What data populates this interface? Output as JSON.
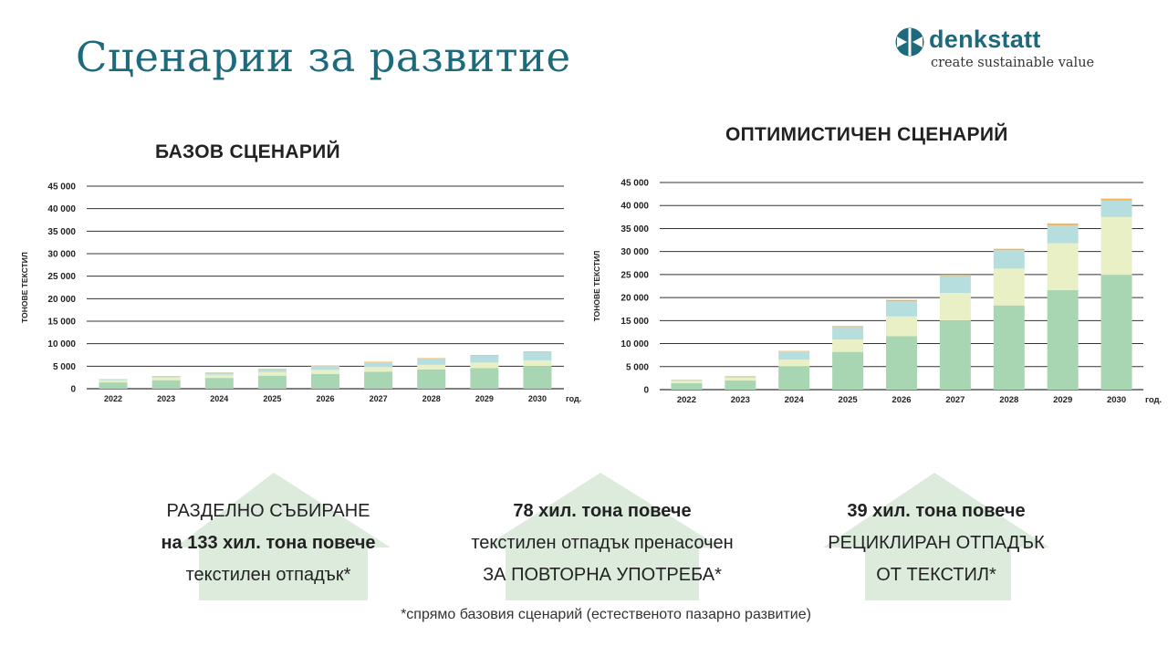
{
  "slide": {
    "title": "Сценарии за развитие",
    "footnote": "*спрямо базовия сценарий (естественото пазарно развитие)"
  },
  "logo": {
    "name": "denkstatt",
    "tagline": "create sustainable value",
    "icon": "denkstatt-logo-icon",
    "color": "#1e6a7d"
  },
  "colors": {
    "title": "#1e6a7d",
    "arrow_fill": "#dcebdc",
    "series": [
      "#a8d5b2",
      "#eaf0c6",
      "#b6dede",
      "#f2b457"
    ]
  },
  "chart_data": [
    {
      "type": "bar",
      "stacked": true,
      "title": "БАЗОВ СЦЕНАРИЙ",
      "ylabel": "ТОНОВЕ ТЕКСТИЛ",
      "xunit": "год.",
      "ylim": [
        0,
        45000
      ],
      "yticks": [
        "0",
        "5 000",
        "10 000",
        "15 000",
        "20 000",
        "25 000",
        "30 000",
        "35 000",
        "40 000",
        "45 000"
      ],
      "grid": true,
      "categories": [
        "2022",
        "2023",
        "2024",
        "2025",
        "2026",
        "2027",
        "2028",
        "2029",
        "2030"
      ],
      "series": [
        {
          "values": [
            1400,
            1900,
            2400,
            2900,
            3300,
            3800,
            4300,
            4600,
            5000
          ]
        },
        {
          "values": [
            500,
            600,
            700,
            800,
            900,
            1000,
            1000,
            1200,
            1300
          ]
        },
        {
          "values": [
            200,
            300,
            500,
            700,
            900,
            1100,
            1400,
            1600,
            1900
          ]
        },
        {
          "values": [
            50,
            50,
            50,
            50,
            50,
            100,
            100,
            100,
            100
          ]
        }
      ]
    },
    {
      "type": "bar",
      "stacked": true,
      "title": "ОПТИМИСТИЧЕН СЦЕНАРИЙ",
      "ylabel": "ТОНОВЕ ТЕКСТИЛ",
      "xunit": "год.",
      "ylim": [
        0,
        45000
      ],
      "yticks": [
        "0",
        "5 000",
        "10 000",
        "15 000",
        "20 000",
        "25 000",
        "30 000",
        "35 000",
        "40 000",
        "45 000"
      ],
      "grid": true,
      "categories": [
        "2022",
        "2023",
        "2024",
        "2025",
        "2026",
        "2027",
        "2028",
        "2029",
        "2030"
      ],
      "series": [
        {
          "values": [
            1400,
            2000,
            5000,
            8200,
            11600,
            15000,
            18300,
            21600,
            24900
          ]
        },
        {
          "values": [
            500,
            600,
            1500,
            2700,
            4300,
            6000,
            8000,
            10200,
            12600
          ]
        },
        {
          "values": [
            200,
            300,
            1800,
            2700,
            3300,
            3700,
            4000,
            3900,
            3600
          ]
        },
        {
          "values": [
            50,
            50,
            100,
            200,
            300,
            300,
            300,
            400,
            400
          ]
        }
      ]
    }
  ],
  "arrows": [
    {
      "line1": "РАЗДЕЛНО СЪБИРАНЕ",
      "line2": "на 133 хил. тона повече",
      "line3": "текстилен отпадък*"
    },
    {
      "line1": "78 хил. тона повече",
      "line2": "текстилен отпадък пренасочен",
      "line3": "ЗА ПОВТОРНА УПОТРЕБА*"
    },
    {
      "line1": "39 хил. тона повече",
      "line2": "РЕЦИКЛИРАН ОТПАДЪК",
      "line3": "ОТ ТЕКСТИЛ*"
    }
  ]
}
